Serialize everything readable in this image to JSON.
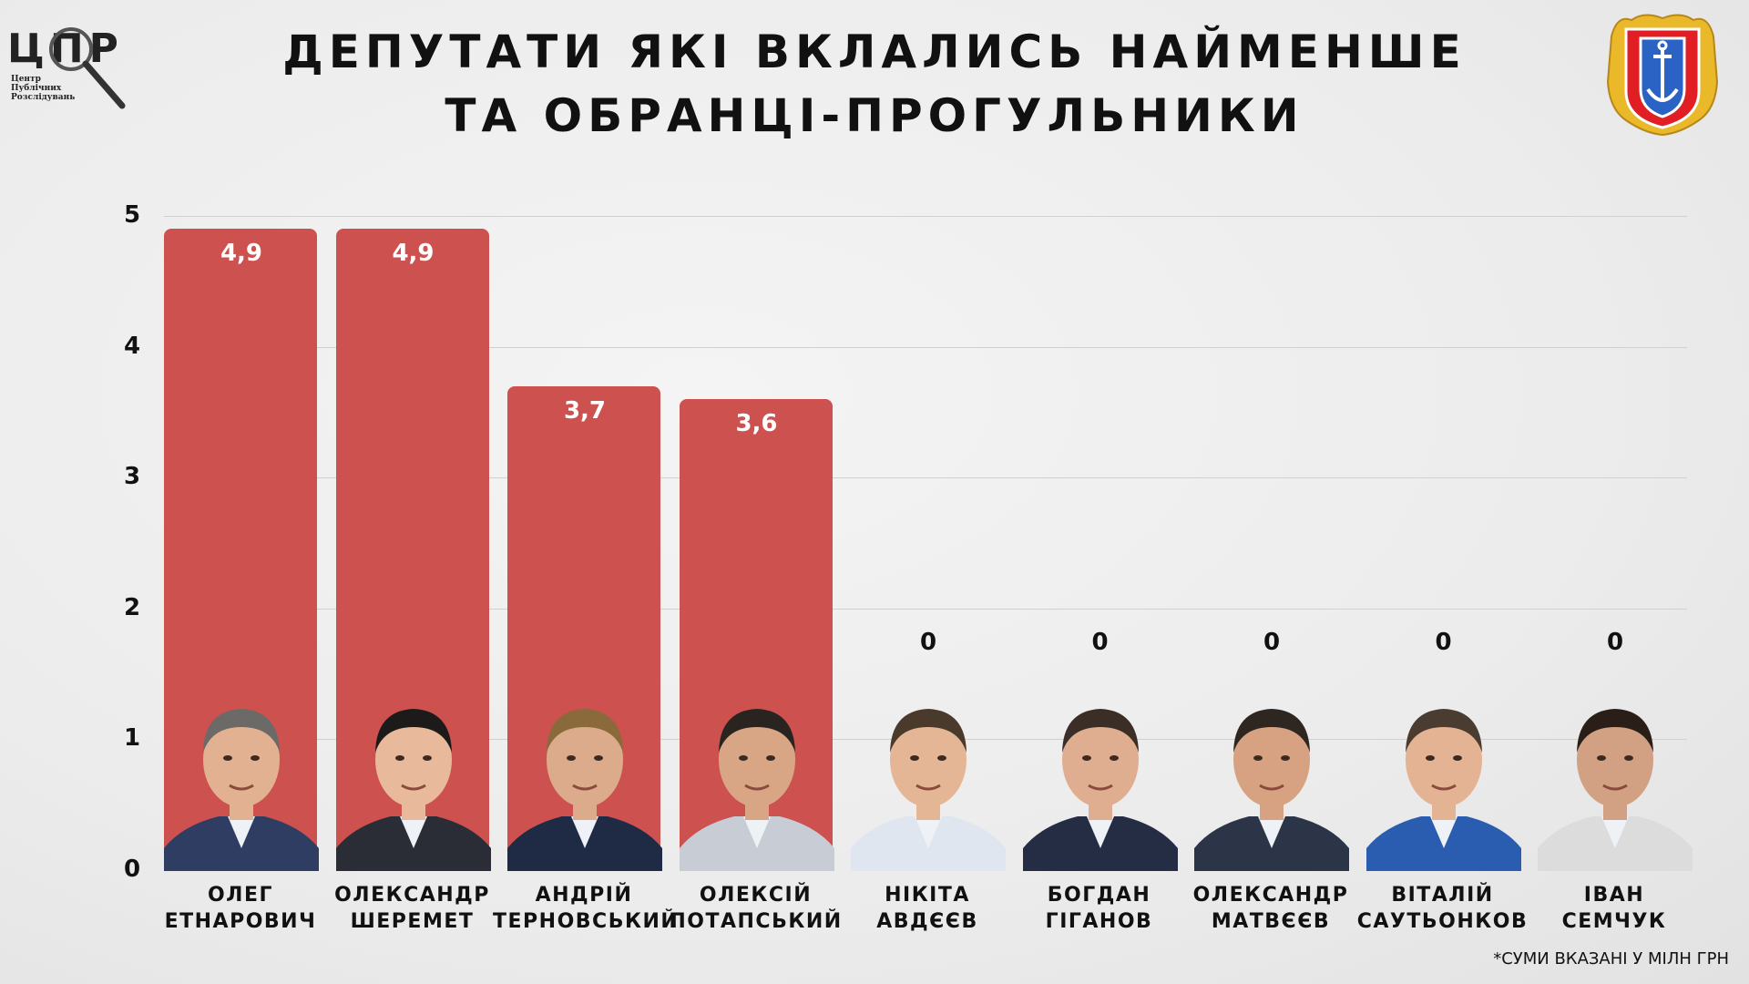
{
  "logo": {
    "main": "ЦПР",
    "line1": "Центр",
    "line2": "Публічних",
    "line3": "Розслідувань"
  },
  "title": {
    "line1": "ДЕПУТАТИ ЯКІ ВКЛАЛИСЬ НАЙМЕНШЕ",
    "line2": "ТА ОБРАНЦІ-ПРОГУЛЬНИКИ"
  },
  "footnote": "*СУМИ ВКАЗАНІ У МІЛН ГРН",
  "colors": {
    "bar": "#cd514e",
    "background": "#ececec",
    "text": "#111111"
  },
  "icons": {
    "logo": "magnifier-icon",
    "coat_of_arms": "odesa-oblast-coat-of-arms-icon"
  },
  "chart_data": {
    "type": "bar",
    "title": "ДЕПУТАТИ ЯКІ ВКЛАЛИСЬ НАЙМЕНШЕ ТА ОБРАНЦІ-ПРОГУЛЬНИКИ",
    "ylim": [
      0,
      5
    ],
    "yticks": [
      "0",
      "1",
      "2",
      "3",
      "4",
      "5"
    ],
    "grid": true,
    "categories": [
      [
        "ОЛЕГ",
        "ЕТНАРОВИЧ"
      ],
      [
        "ОЛЕКСАНДР",
        "ШЕРЕМЕТ"
      ],
      [
        "АНДРІЙ",
        "ТЕРНОВСЬКИЙ"
      ],
      [
        "ОЛЕКСІЙ",
        "ПОТАПСЬКИЙ"
      ],
      [
        "НІКІТА",
        "АВДЄЄВ"
      ],
      [
        "БОГДАН",
        "ГІГАНОВ"
      ],
      [
        "ОЛЕКСАНДР",
        "МАТВЄЄВ"
      ],
      [
        "ВІТАЛІЙ",
        "САУТЬОНКОВ"
      ],
      [
        "ІВАН",
        "СЕМЧУК"
      ]
    ],
    "values": [
      4.9,
      4.9,
      3.7,
      3.6,
      0,
      0,
      0,
      0,
      0
    ],
    "value_labels": [
      "4,9",
      "4,9",
      "3,7",
      "3,6",
      "0",
      "0",
      "0",
      "0",
      "0"
    ]
  }
}
